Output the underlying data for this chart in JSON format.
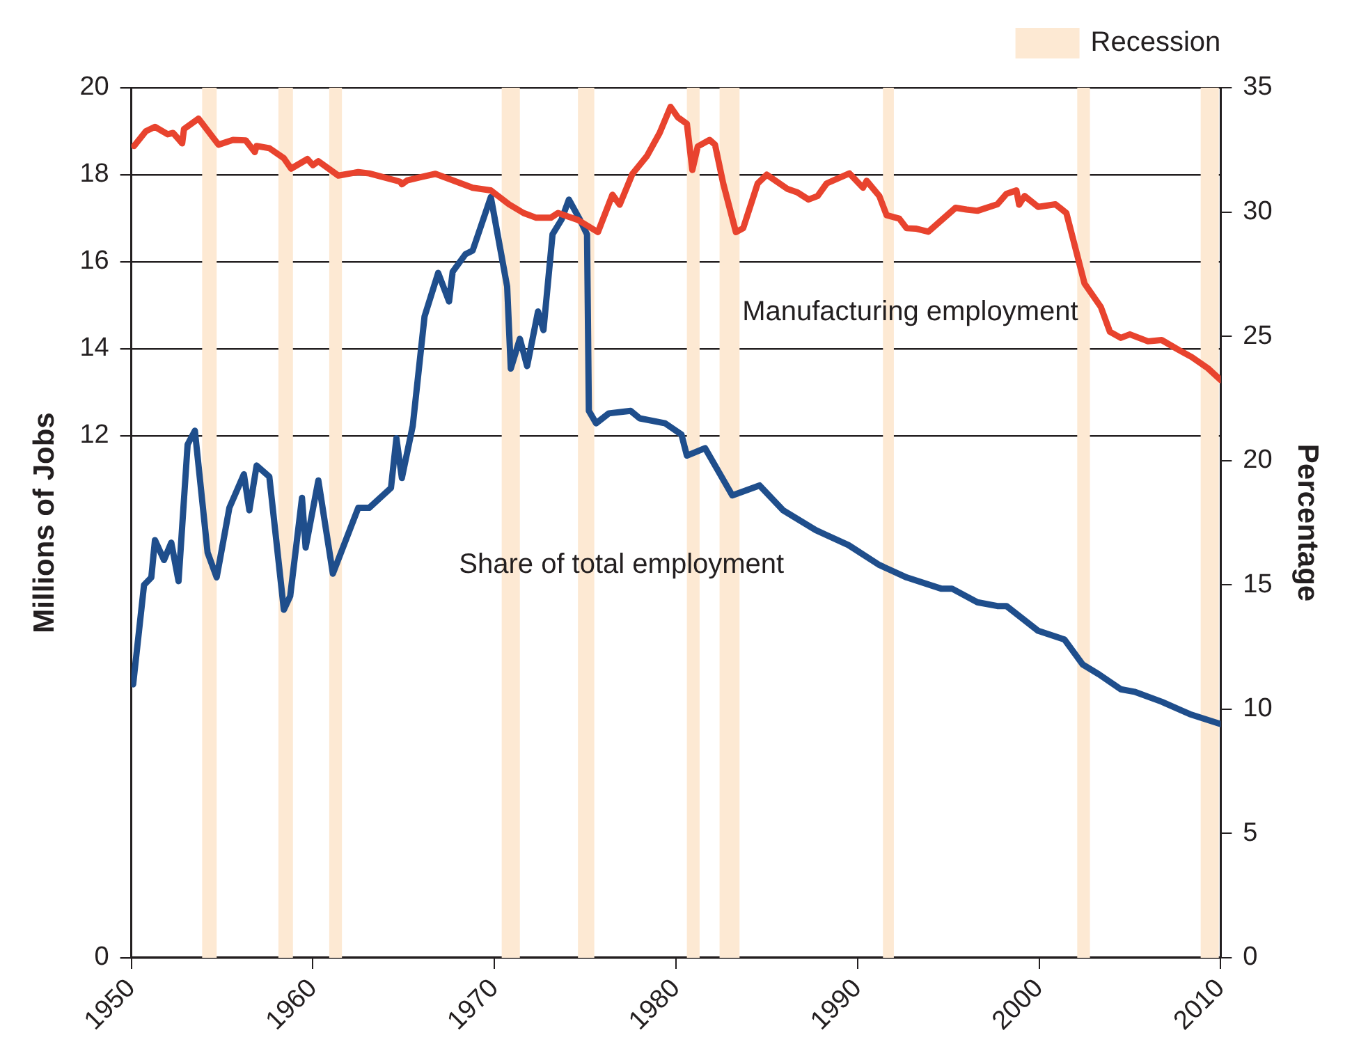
{
  "chart_data": {
    "type": "line",
    "xlabel": null,
    "ylabel": "Millions of Jobs",
    "y2label": "Percentage",
    "xlim": [
      1950,
      2010
    ],
    "xticks": [
      1950,
      1960,
      1970,
      1980,
      1990,
      2000,
      2010
    ],
    "ylim": [
      0,
      20
    ],
    "yticks": [
      0,
      12,
      14,
      16,
      18,
      20
    ],
    "y2lim": [
      0,
      35
    ],
    "y2ticks": [
      0,
      5,
      10,
      15,
      20,
      25,
      30,
      35
    ],
    "grid": "y",
    "legend": "top right",
    "marker": "none",
    "line_style": "solid",
    "series": [
      {
        "name": "Manufacturing employment",
        "color": "#e8432e",
        "x": [
          1950.15,
          1950.8,
          1951.3,
          1952.0,
          1952.3,
          1952.8,
          1952.9,
          1953.7,
          1954.8,
          1955.6,
          1956.3,
          1956.8,
          1956.9,
          1957.6,
          1958.4,
          1958.8,
          1959.7,
          1960.0,
          1960.3,
          1961.4,
          1962.5,
          1963.1,
          1964.8,
          1964.9,
          1965.2,
          1966.0,
          1966.75,
          1968.8,
          1969.8,
          1970.8,
          1971.6,
          1972.3,
          1973.1,
          1973.5,
          1974.6,
          1975.7,
          1976.5,
          1976.9,
          1977.6,
          1978.4,
          1979.1,
          1979.7,
          1980.1,
          1980.6,
          1980.9,
          1981.2,
          1981.85,
          1982.15,
          1982.6,
          1983.3,
          1983.7,
          1984.5,
          1985.0,
          1986.15,
          1986.7,
          1987.3,
          1987.8,
          1988.3,
          1989.55,
          1990.3,
          1990.5,
          1991.2,
          1991.6,
          1992.3,
          1992.7,
          1993.2,
          1993.9,
          1995.4,
          1996.0,
          1996.6,
          1997.7,
          1998.2,
          1998.75,
          1998.9,
          1999.2,
          1999.95,
          2000.9,
          2001.5,
          2002.5,
          2003.4,
          2003.9,
          2004.5,
          2005.0,
          2006.0,
          2006.75,
          2007.7,
          2008.4,
          2009.3,
          2010.0
        ],
        "values": [
          18.66,
          19.0,
          19.1,
          18.93,
          18.96,
          18.72,
          19.05,
          19.29,
          18.69,
          18.8,
          18.79,
          18.52,
          18.66,
          18.61,
          18.38,
          18.14,
          18.36,
          18.22,
          18.31,
          17.98,
          18.06,
          18.03,
          17.84,
          17.78,
          17.87,
          17.95,
          18.02,
          17.7,
          17.64,
          17.32,
          17.12,
          17.01,
          17.01,
          17.12,
          16.96,
          16.68,
          17.54,
          17.31,
          18.02,
          18.43,
          18.96,
          19.56,
          19.32,
          19.17,
          18.11,
          18.65,
          18.8,
          18.69,
          17.8,
          16.68,
          16.77,
          17.8,
          18.0,
          17.67,
          17.59,
          17.43,
          17.51,
          17.8,
          18.03,
          17.7,
          17.86,
          17.51,
          17.07,
          16.99,
          16.77,
          16.76,
          16.69,
          17.24,
          17.2,
          17.17,
          17.32,
          17.56,
          17.64,
          17.31,
          17.51,
          17.26,
          17.32,
          17.12,
          15.5,
          14.96,
          14.39,
          14.25,
          14.33,
          14.17,
          14.2,
          13.97,
          13.81,
          13.55,
          13.28
        ]
      },
      {
        "name": "Share of total employment",
        "color": "#1f4e8c",
        "axis": "y2",
        "x": [
          1950.1,
          1950.7,
          1951.1,
          1951.3,
          1951.8,
          1952.2,
          1952.6,
          1953.1,
          1953.5,
          1954.2,
          1954.7,
          1955.4,
          1956.2,
          1956.5,
          1956.9,
          1957.6,
          1958.4,
          1958.75,
          1959.4,
          1959.6,
          1960.3,
          1961.1,
          1962.5,
          1963.1,
          1964.3,
          1964.6,
          1964.9,
          1965.5,
          1966.15,
          1966.9,
          1967.5,
          1967.7,
          1968.4,
          1968.8,
          1969.8,
          1970.3,
          1970.7,
          1970.9,
          1971.4,
          1971.8,
          1972.4,
          1972.7,
          1973.2,
          1973.7,
          1974.1,
          1974.7,
          1975.1,
          1975.2,
          1975.6,
          1976.3,
          1977.5,
          1978.0,
          1979.4,
          1980.3,
          1980.6,
          1981.6,
          1983.1,
          1984.6,
          1985.9,
          1987.7,
          1989.5,
          1991.2,
          1992.7,
          1994.6,
          1995.2,
          1996.6,
          1997.7,
          1998.2,
          1999.95,
          2001.4,
          2002.4,
          2003.3,
          2004.5,
          2005.25,
          2006.75,
          2008.3,
          2010.0
        ],
        "values": [
          11.0,
          15.0,
          15.3,
          16.8,
          16.0,
          16.7,
          15.15,
          20.65,
          21.2,
          16.3,
          15.3,
          18.1,
          19.45,
          18.0,
          19.8,
          19.35,
          14.0,
          14.55,
          18.5,
          16.5,
          19.2,
          15.45,
          18.1,
          18.1,
          18.9,
          20.9,
          19.3,
          21.4,
          25.8,
          27.55,
          26.4,
          27.6,
          28.3,
          28.45,
          30.6,
          28.6,
          27.0,
          23.7,
          24.9,
          23.8,
          26.0,
          25.25,
          29.1,
          29.7,
          30.5,
          29.7,
          29.1,
          22.0,
          21.5,
          21.9,
          22.0,
          21.7,
          21.5,
          21.05,
          20.2,
          20.5,
          18.6,
          19.0,
          18.0,
          17.2,
          16.6,
          15.8,
          15.3,
          14.85,
          14.85,
          14.3,
          14.15,
          14.15,
          13.15,
          12.8,
          11.8,
          11.4,
          10.8,
          10.7,
          10.3,
          9.8,
          9.4
        ]
      }
    ],
    "bands": [
      {
        "axis": "x",
        "from": 1953.9,
        "to": 1954.7,
        "label": "Recession",
        "color": "#fde9d3"
      },
      {
        "axis": "x",
        "from": 1958.1,
        "to": 1958.9,
        "color": "#fde9d3"
      },
      {
        "axis": "x",
        "from": 1960.9,
        "to": 1961.6,
        "color": "#fde9d3"
      },
      {
        "axis": "x",
        "from": 1970.4,
        "to": 1971.4,
        "color": "#fde9d3"
      },
      {
        "axis": "x",
        "from": 1974.6,
        "to": 1975.5,
        "color": "#fde9d3"
      },
      {
        "axis": "x",
        "from": 1980.6,
        "to": 1981.3,
        "color": "#fde9d3"
      },
      {
        "axis": "x",
        "from": 1982.4,
        "to": 1983.5,
        "color": "#fde9d3"
      },
      {
        "axis": "x",
        "from": 1991.4,
        "to": 1992.0,
        "color": "#fde9d3"
      },
      {
        "axis": "x",
        "from": 2002.1,
        "to": 2002.8,
        "color": "#fde9d3"
      },
      {
        "axis": "x",
        "from": 2008.9,
        "to": 2009.9,
        "color": "#fde9d3"
      }
    ]
  }
}
